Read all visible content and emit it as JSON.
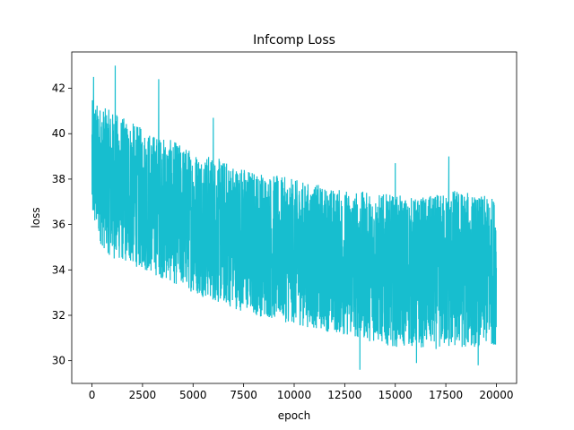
{
  "chart_data": {
    "type": "line",
    "title": "Infcomp Loss",
    "xlabel": "epoch",
    "ylabel": "loss",
    "xlim": [
      -1000,
      21000
    ],
    "ylim": [
      29.0,
      43.6
    ],
    "xticks": [
      0,
      2500,
      5000,
      7500,
      10000,
      12500,
      15000,
      17500,
      20000
    ],
    "xtick_labels": [
      "0",
      "2500",
      "5000",
      "7500",
      "10000",
      "12500",
      "15000",
      "17500",
      "20000"
    ],
    "yticks": [
      30,
      32,
      34,
      36,
      38,
      40,
      42
    ],
    "ytick_labels": [
      "30",
      "32",
      "34",
      "36",
      "38",
      "40",
      "42"
    ],
    "grid": false,
    "series": [
      {
        "color": "#17becf",
        "envelope": {
          "x": [
            0,
            500,
            1000,
            2000,
            3000,
            4000,
            5000,
            6000,
            7000,
            8000,
            9000,
            10000,
            11000,
            12000,
            13000,
            14000,
            15000,
            16000,
            17000,
            18000,
            19000,
            20000
          ],
          "low": [
            36.0,
            35.0,
            34.5,
            34.2,
            33.8,
            33.4,
            33.0,
            32.6,
            32.3,
            32.0,
            31.8,
            31.6,
            31.4,
            31.2,
            31.0,
            30.8,
            30.6,
            30.6,
            30.5,
            30.5,
            30.6,
            30.7
          ],
          "high": [
            41.5,
            41.2,
            41.0,
            40.5,
            40.0,
            39.7,
            39.3,
            39.0,
            38.7,
            38.4,
            38.2,
            38.0,
            37.8,
            37.6,
            37.5,
            37.4,
            37.3,
            37.2,
            37.3,
            37.6,
            37.3,
            37.2
          ]
        },
        "peaks": [
          [
            80,
            42.5
          ],
          [
            1150,
            43.0
          ],
          [
            3300,
            42.4
          ],
          [
            6000,
            40.7
          ],
          [
            15000,
            38.7
          ],
          [
            17650,
            39.0
          ]
        ],
        "troughs": [
          [
            13250,
            29.6
          ],
          [
            16050,
            29.9
          ],
          [
            19100,
            29.8
          ]
        ]
      }
    ]
  }
}
